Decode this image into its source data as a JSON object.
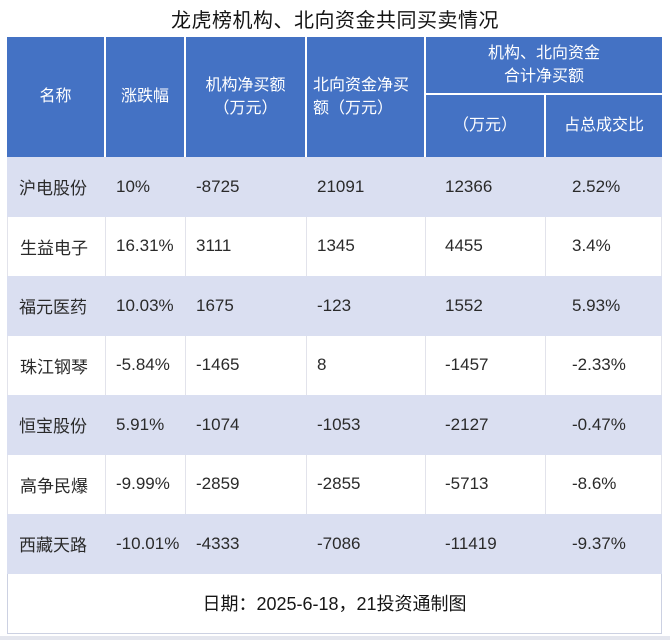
{
  "title": "龙虎榜机构、北向资金共同买卖情况",
  "colors": {
    "header_bg": "#4472C4",
    "header_text": "#ffffff",
    "row_alt_bg": "#dadff1",
    "row_bg": "#ffffff",
    "body_text": "#2a2a2a",
    "grid_line": "#e2e3eb"
  },
  "chart_data": {
    "type": "table",
    "title": "龙虎榜机构、北向资金共同买卖情况",
    "header": {
      "name": "名称",
      "change_pct": "涨跌幅",
      "inst_net_buy": "机构净买额\n（万元）",
      "north_net_buy": "北向资金净买\n额（万元）",
      "combined_group": "机构、北向资金\n合计净买额",
      "combined_amount": "（万元）",
      "combined_ratio": "占总成交比"
    },
    "rows": [
      [
        "沪电股份",
        "10%",
        "-8725",
        "21091",
        "12366",
        "2.52%"
      ],
      [
        "生益电子",
        "16.31%",
        "3111",
        "1345",
        "4455",
        "3.4%"
      ],
      [
        "福元医药",
        "10.03%",
        "1675",
        "-123",
        "1552",
        "5.93%"
      ],
      [
        "珠江钢琴",
        "-5.84%",
        "-1465",
        "8",
        "-1457",
        "-2.33%"
      ],
      [
        "恒宝股份",
        "5.91%",
        "-1074",
        "-1053",
        "-2127",
        "-0.47%"
      ],
      [
        "高争民爆",
        "-9.99%",
        "-2859",
        "-2855",
        "-5713",
        "-8.6%"
      ],
      [
        "西藏天路",
        "-10.01%",
        "-4333",
        "-7086",
        "-11419",
        "-9.37%"
      ]
    ],
    "footer_note": "日期：2025-6-18，21投资通制图"
  }
}
